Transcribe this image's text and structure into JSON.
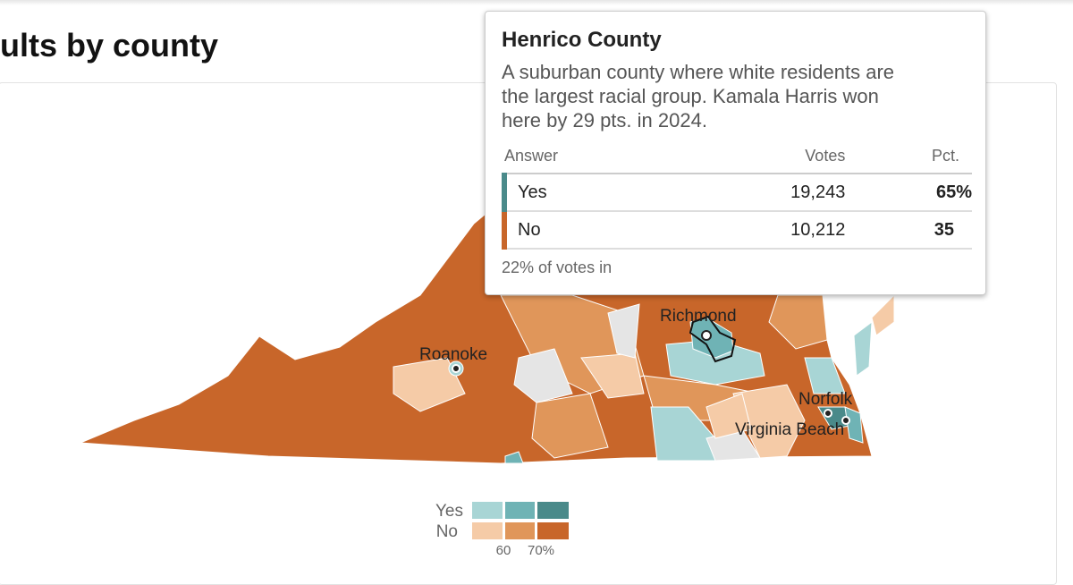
{
  "header": {
    "title": "ults by county"
  },
  "tooltip": {
    "title": "Henrico County",
    "description": "A suburban county where white residents are the largest racial group. Kamala Harris won here by 29 pts. in 2024.",
    "columns": [
      "Answer",
      "Votes",
      "Pct."
    ],
    "rows": [
      [
        "Yes",
        "19,243",
        "65%"
      ],
      [
        "No",
        "10,212",
        "35"
      ]
    ],
    "footnote": "22% of votes in"
  },
  "map": {
    "cities": [
      "Richmond",
      "Roanoke",
      "Norfolk",
      "Virginia Beach"
    ]
  },
  "legend": {
    "rows": [
      "Yes",
      "No"
    ],
    "ticks": [
      "60",
      "70%"
    ]
  }
}
